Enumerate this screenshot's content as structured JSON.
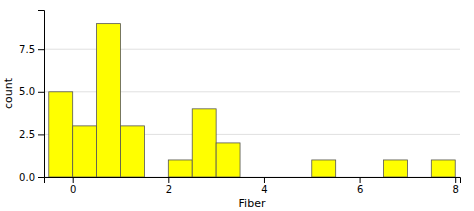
{
  "chart_data": {
    "type": "histogram",
    "xlabel": "Fiber",
    "ylabel": "count",
    "bins": [
      -0.5,
      0.0,
      0.5,
      1.0,
      1.5,
      2.0,
      2.5,
      3.0,
      3.5,
      4.0,
      4.5,
      5.0,
      5.5,
      6.0,
      6.5,
      7.0,
      7.5,
      8.0
    ],
    "values": [
      5,
      3,
      9,
      3,
      0,
      1,
      4,
      2,
      0,
      0,
      0,
      1,
      0,
      0,
      1,
      0,
      1
    ],
    "color": "#ffff00",
    "xlim": [
      -0.6,
      8.1
    ],
    "xticks": [
      0,
      2,
      4,
      6,
      8
    ],
    "ylim": [
      0,
      9.8
    ],
    "yticks": [
      {
        "value": 0.0,
        "label": "0.0"
      },
      2.5,
      {
        "value": 5.0,
        "label": "5.0"
      },
      7.5
    ],
    "grid": true
  }
}
